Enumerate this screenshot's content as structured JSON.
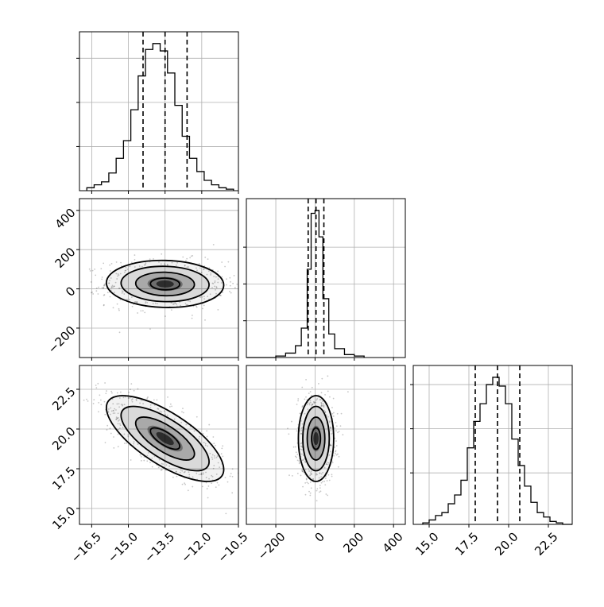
{
  "chart_data": {
    "type": "corner",
    "parameters": [
      {
        "key": "p1",
        "range": [
          -17.0,
          -10.5
        ],
        "ticks": [
          -16.5,
          -15.0,
          -13.5,
          -12.0,
          -10.5
        ],
        "tick_labels": [
          "−16.5",
          "−15.0",
          "−13.5",
          "−12.0",
          "−10.5"
        ],
        "quantiles": [
          -14.4,
          -13.5,
          -12.6
        ]
      },
      {
        "key": "p2",
        "range": [
          -350,
          460
        ],
        "ticks": [
          -200,
          0,
          200,
          400
        ],
        "tick_labels": [
          "−200",
          "0",
          "200",
          "400"
        ],
        "quantiles": [
          -35,
          5,
          45
        ]
      },
      {
        "key": "p3",
        "range": [
          14.0,
          24.0
        ],
        "ticks": [
          15.0,
          17.5,
          20.0,
          22.5
        ],
        "tick_labels": [
          "15.0",
          "17.5",
          "20.0",
          "22.5"
        ],
        "quantiles": [
          17.9,
          19.3,
          20.7
        ]
      }
    ],
    "histograms": [
      {
        "param": 0,
        "bins": [
          -16.7,
          -16.4,
          -16.1,
          -15.8,
          -15.5,
          -15.2,
          -14.9,
          -14.6,
          -14.3,
          -14.0,
          -13.7,
          -13.4,
          -13.1,
          -12.8,
          -12.5,
          -12.2,
          -11.9,
          -11.6,
          -11.3,
          -11.0,
          -10.7
        ],
        "counts": [
          2,
          4,
          6,
          12,
          22,
          34,
          55,
          78,
          96,
          100,
          95,
          80,
          58,
          37,
          22,
          13,
          7,
          4,
          2,
          1
        ],
        "ymax": 108,
        "yticks": [
          30,
          60,
          90
        ]
      },
      {
        "param": 1,
        "bins": [
          -350,
          -300,
          -250,
          -200,
          -150,
          -100,
          -70,
          -40,
          -20,
          0,
          20,
          40,
          70,
          100,
          150,
          200,
          250
        ],
        "counts": [
          0,
          0,
          0,
          1,
          3,
          8,
          20,
          60,
          98,
          100,
          82,
          40,
          16,
          6,
          2,
          1
        ],
        "ymax": 108,
        "yticks": [
          25,
          50,
          75
        ]
      },
      {
        "param": 2,
        "bins": [
          14.6,
          15.0,
          15.4,
          15.8,
          16.2,
          16.6,
          17.0,
          17.4,
          17.8,
          18.2,
          18.6,
          19.0,
          19.4,
          19.8,
          20.2,
          20.6,
          21.0,
          21.4,
          21.8,
          22.2,
          22.6,
          23.0,
          23.4,
          24.0
        ],
        "counts": [
          1,
          3,
          6,
          8,
          14,
          20,
          30,
          52,
          70,
          82,
          95,
          100,
          94,
          82,
          58,
          40,
          26,
          15,
          8,
          5,
          2,
          1,
          0
        ],
        "ymax": 108,
        "yticks": [
          35,
          65,
          95
        ]
      }
    ],
    "pairs": [
      {
        "x_param": 0,
        "y_param": 1,
        "mean": [
          -13.5,
          25
        ],
        "sd": [
          1.2,
          60
        ],
        "corr": -0.05
      },
      {
        "x_param": 0,
        "y_param": 2,
        "mean": [
          -13.5,
          19.4
        ],
        "sd": [
          1.2,
          1.35
        ],
        "corr": -0.72
      },
      {
        "x_param": 1,
        "y_param": 2,
        "mean": [
          5,
          19.4
        ],
        "sd": [
          45,
          1.35
        ],
        "corr": 0.0
      }
    ],
    "grid": true,
    "contour_levels_sigma": [
      0.5,
      1.0,
      1.5,
      2.0
    ]
  }
}
